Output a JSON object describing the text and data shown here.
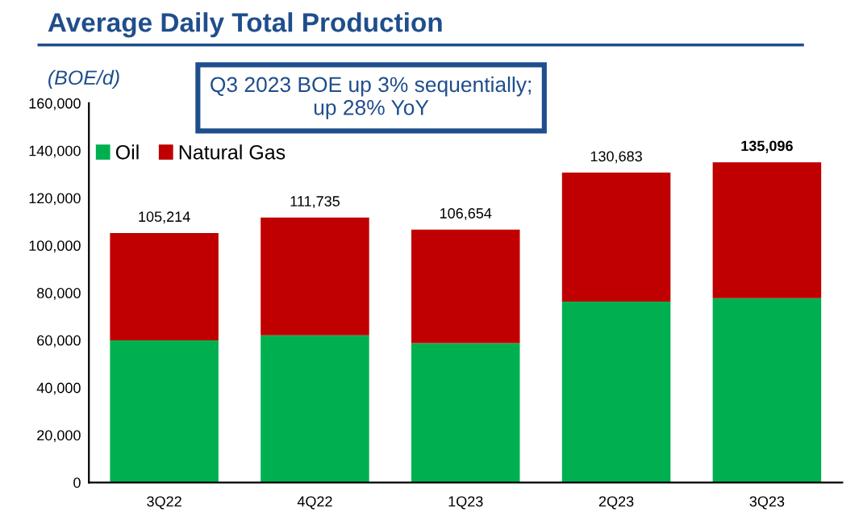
{
  "chart_data": {
    "type": "bar",
    "stacked": true,
    "title": "Average Daily Total Production",
    "ylabel": "(BOE/d)",
    "annotations": [
      "Q3 2023 BOE up 3% sequentially;\nup 28% YoY"
    ],
    "categories": [
      "3Q22",
      "4Q22",
      "1Q23",
      "2Q23",
      "3Q23"
    ],
    "series": [
      {
        "name": "Oil",
        "color": "#00b050",
        "values": [
          60000,
          62100,
          58800,
          76300,
          77700
        ]
      },
      {
        "name": "Natural Gas",
        "color": "#c00000",
        "values": [
          45214,
          49635,
          47854,
          54383,
          57396
        ]
      }
    ],
    "totals": [
      "105,214",
      "111,735",
      "106,654",
      "130,683",
      "135,096"
    ],
    "ylim": [
      0,
      160000
    ],
    "yticks": [
      {
        "value": 0,
        "label": "0"
      },
      {
        "value": 20000,
        "label": "20,000"
      },
      {
        "value": 40000,
        "label": "40,000"
      },
      {
        "value": 60000,
        "label": "60,000"
      },
      {
        "value": 80000,
        "label": "80,000"
      },
      {
        "value": 100000,
        "label": "100,000"
      },
      {
        "value": 120000,
        "label": "120,000"
      },
      {
        "value": 140000,
        "label": "140,000"
      },
      {
        "value": 160000,
        "label": "160,000"
      }
    ],
    "grid": false,
    "legend": "top left"
  }
}
